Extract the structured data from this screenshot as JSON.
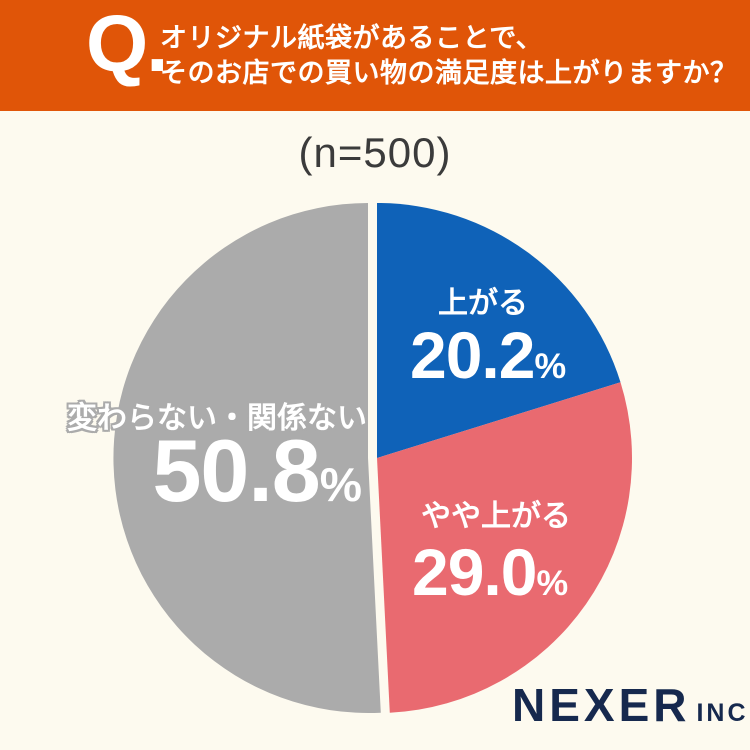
{
  "page": {
    "background": "#FDFAEF"
  },
  "header": {
    "q_mark": "Q.",
    "question_line1": "オリジナル紙袋があることで、",
    "question_line2": "そのお店での買い物の満足度は上がりますか？",
    "background": "#E05508",
    "text_color": "#FFFFFF"
  },
  "chart_data": {
    "type": "pie",
    "title": "オリジナル紙袋があることで、そのお店での買い物の満足度は上がりますか？",
    "sample_label": "(n=500)",
    "n": 500,
    "start_angle_deg": 0,
    "direction": "clockwise",
    "legend_position": "inside-slices",
    "percent_sign": "%",
    "slices": [
      {
        "label": "上がる",
        "value": 20.2,
        "display_value": "20.2",
        "color": "#0F62B8",
        "exploded": false
      },
      {
        "label": "やや上がる",
        "value": 29.0,
        "display_value": "29.0",
        "color": "#E96A70",
        "exploded": false
      },
      {
        "label": "変わらない・関係ない",
        "value": 50.8,
        "display_value": "50.8",
        "color": "#ABABAB",
        "exploded": true
      }
    ]
  },
  "logo": {
    "name": "NEXER",
    "suffix": "INC.",
    "color": "#16294E"
  }
}
